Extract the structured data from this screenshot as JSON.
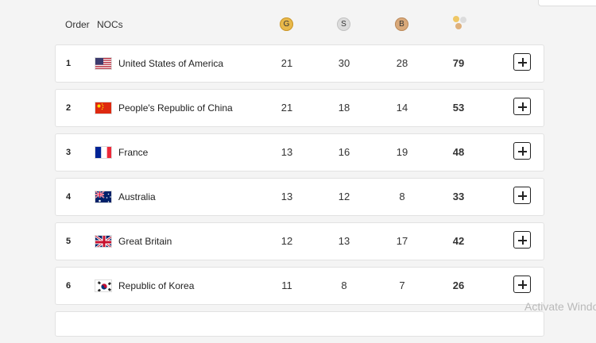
{
  "header": {
    "order_label": "Order",
    "nocs_label": "NOCs",
    "gold_label": "G",
    "silver_label": "S",
    "bronze_label": "B",
    "total_icon": "medals-total-icon"
  },
  "rows": [
    {
      "order": "1",
      "country": "United States of America",
      "flag": "usa-flag-icon",
      "gold": "21",
      "silver": "30",
      "bronze": "28",
      "total": "79"
    },
    {
      "order": "2",
      "country": "People's Republic of China",
      "flag": "china-flag-icon",
      "gold": "21",
      "silver": "18",
      "bronze": "14",
      "total": "53"
    },
    {
      "order": "3",
      "country": "France",
      "flag": "france-flag-icon",
      "gold": "13",
      "silver": "16",
      "bronze": "19",
      "total": "48"
    },
    {
      "order": "4",
      "country": "Australia",
      "flag": "australia-flag-icon",
      "gold": "13",
      "silver": "12",
      "bronze": "8",
      "total": "33"
    },
    {
      "order": "5",
      "country": "Great Britain",
      "flag": "great-britain-flag-icon",
      "gold": "12",
      "silver": "13",
      "bronze": "17",
      "total": "42"
    },
    {
      "order": "6",
      "country": "Republic of Korea",
      "flag": "korea-flag-icon",
      "gold": "11",
      "silver": "8",
      "bronze": "7",
      "total": "26"
    }
  ],
  "watermark": "Activate Windo",
  "colors": {
    "gold": "#e8b84a",
    "silver": "#dcdcdc",
    "bronze": "#d9a97a"
  }
}
